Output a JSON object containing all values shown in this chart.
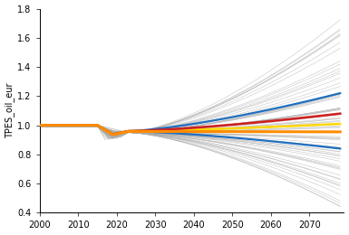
{
  "ylabel": "TPES_oil_eur",
  "xlim": [
    2000,
    2079
  ],
  "ylim": [
    0.4,
    1.8
  ],
  "yticks": [
    0.4,
    0.6,
    0.8,
    1.0,
    1.2,
    1.4,
    1.6,
    1.8
  ],
  "xticks": [
    2000,
    2010,
    2020,
    2030,
    2040,
    2050,
    2060,
    2070
  ],
  "x_end": 2078,
  "n_gray_lines": 70,
  "seed": 12,
  "orange_color": "#ff8c00",
  "blue_color": "#1f6fbf",
  "red_color": "#cc2222",
  "yellow_color": "#ffd700",
  "gray_color": "#aaaaaa",
  "orange_lw": 2.2,
  "highlight_lw": 1.6
}
